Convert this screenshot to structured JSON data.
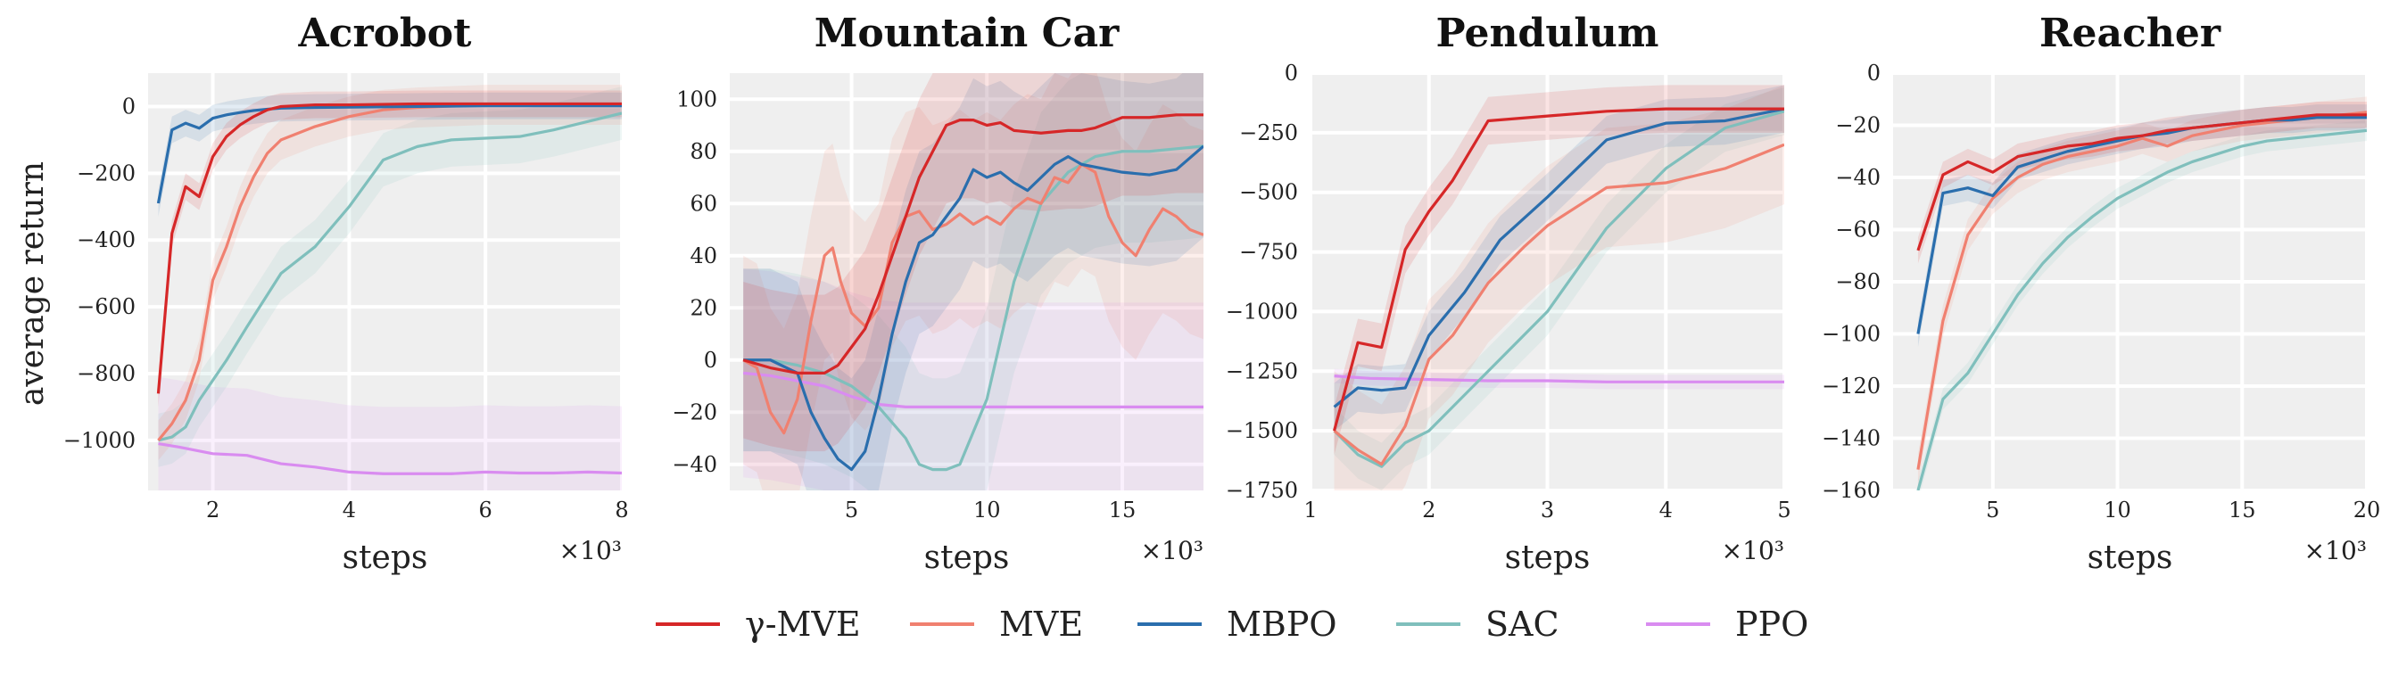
{
  "ylabel_shared": "average return",
  "legend": [
    {
      "label": "γ-MVE",
      "color": "#d62728"
    },
    {
      "label": "MVE",
      "color": "#f08070"
    },
    {
      "label": "MBPO",
      "color": "#2a6ead"
    },
    {
      "label": "SAC",
      "color": "#7fbfbc"
    },
    {
      "label": "PPO",
      "color": "#d98cf0"
    }
  ],
  "x_multiplier": "×10³",
  "chart_data": [
    {
      "type": "line",
      "title": "Acrobot",
      "xlabel": "steps",
      "ylabel": "average return",
      "xlim": [
        1.05,
        8
      ],
      "ylim": [
        -1150,
        100
      ],
      "xticks": [
        2,
        4,
        6,
        8
      ],
      "yticks": [
        0,
        -200,
        -400,
        -600,
        -800,
        -1000
      ],
      "grid": true,
      "series": [
        {
          "name": "γ-MVE",
          "x": [
            1.2,
            1.4,
            1.6,
            1.8,
            2.0,
            2.2,
            2.4,
            2.6,
            2.8,
            3.0,
            3.5,
            4.0,
            5.0,
            6.0,
            7.0,
            8.0
          ],
          "y": [
            -860,
            -380,
            -240,
            -270,
            -150,
            -90,
            -55,
            -30,
            -10,
            0,
            5,
            5,
            8,
            8,
            8,
            8
          ],
          "band": 40
        },
        {
          "name": "MVE",
          "x": [
            1.2,
            1.4,
            1.6,
            1.8,
            2.0,
            2.2,
            2.4,
            2.6,
            2.8,
            3.0,
            3.5,
            4.0,
            4.5,
            5.0,
            6.0,
            7.0,
            8.0
          ],
          "y": [
            -1000,
            -950,
            -880,
            -760,
            -520,
            -420,
            -300,
            -210,
            -140,
            -100,
            -60,
            -30,
            -10,
            -3,
            5,
            5,
            5
          ],
          "band": 60
        },
        {
          "name": "MBPO",
          "x": [
            1.2,
            1.4,
            1.6,
            1.8,
            2.0,
            2.2,
            2.4,
            2.6,
            2.8,
            3.0,
            3.5,
            4.0,
            5.0,
            6.0,
            7.0,
            8.0
          ],
          "y": [
            -290,
            -70,
            -50,
            -65,
            -35,
            -25,
            -18,
            -12,
            -8,
            -5,
            -3,
            -2,
            0,
            2,
            2,
            2
          ],
          "band": 40
        },
        {
          "name": "SAC",
          "x": [
            1.2,
            1.4,
            1.6,
            1.8,
            2.0,
            2.2,
            2.5,
            3.0,
            3.5,
            4.0,
            4.5,
            5.0,
            5.5,
            6.0,
            6.5,
            7.0,
            7.5,
            8.0
          ],
          "y": [
            -1000,
            -990,
            -960,
            -880,
            -820,
            -760,
            -660,
            -500,
            -420,
            -300,
            -160,
            -120,
            -100,
            -95,
            -90,
            -70,
            -45,
            -20
          ],
          "band": 80
        },
        {
          "name": "PPO",
          "x": [
            1.2,
            1.5,
            2.0,
            2.5,
            3.0,
            3.5,
            4.0,
            4.5,
            5.0,
            5.5,
            6.0,
            6.5,
            7.0,
            7.5,
            8.0
          ],
          "y": [
            -1010,
            -1020,
            -1040,
            -1045,
            -1070,
            -1080,
            -1095,
            -1100,
            -1100,
            -1100,
            -1095,
            -1098,
            -1098,
            -1095,
            -1098
          ],
          "band": 200
        }
      ]
    },
    {
      "type": "line",
      "title": "Mountain Car",
      "xlabel": "steps",
      "ylabel": "",
      "xlim": [
        0.5,
        18
      ],
      "ylim": [
        -50,
        110
      ],
      "xticks": [
        5,
        10,
        15
      ],
      "yticks": [
        100,
        80,
        60,
        40,
        20,
        0,
        -20,
        -40
      ],
      "grid": true,
      "series": [
        {
          "name": "γ-MVE",
          "x": [
            1,
            2,
            3,
            4,
            4.5,
            5,
            5.5,
            6,
            6.5,
            7,
            7.5,
            8,
            8.5,
            9,
            9.5,
            10,
            10.5,
            11,
            12,
            13,
            13.5,
            14,
            15,
            16,
            17,
            18
          ],
          "y": [
            0,
            -3,
            -5,
            -5,
            -2,
            5,
            12,
            25,
            40,
            55,
            70,
            80,
            90,
            92,
            92,
            90,
            91,
            88,
            87,
            88,
            88,
            89,
            93,
            93,
            94,
            94
          ],
          "band": 30
        },
        {
          "name": "MVE",
          "x": [
            1,
            1.5,
            2,
            2.5,
            3,
            3.5,
            4,
            4.3,
            4.6,
            5,
            5.5,
            6,
            6.5,
            7,
            7.5,
            8,
            8.5,
            9,
            9.5,
            10,
            10.5,
            11,
            11.5,
            12,
            12.5,
            13,
            13.5,
            14,
            14.5,
            15,
            15.5,
            16,
            16.5,
            17,
            17.5,
            18
          ],
          "y": [
            0,
            -3,
            -20,
            -28,
            -15,
            15,
            40,
            43,
            30,
            18,
            13,
            20,
            45,
            55,
            57,
            50,
            52,
            56,
            52,
            55,
            52,
            58,
            62,
            60,
            70,
            68,
            75,
            72,
            55,
            45,
            40,
            50,
            58,
            55,
            50,
            48
          ],
          "band": 40
        },
        {
          "name": "MBPO",
          "x": [
            1,
            2,
            3,
            3.5,
            4,
            4.5,
            5,
            5.5,
            6,
            6.5,
            7,
            7.5,
            8,
            8.5,
            9,
            9.5,
            10,
            10.5,
            11,
            11.5,
            12,
            12.5,
            13,
            13.5,
            14,
            15,
            16,
            17,
            18
          ],
          "y": [
            0,
            0,
            -5,
            -20,
            -30,
            -38,
            -42,
            -35,
            -15,
            10,
            30,
            45,
            48,
            55,
            62,
            73,
            70,
            72,
            68,
            65,
            70,
            75,
            78,
            75,
            74,
            72,
            71,
            73,
            82
          ],
          "band": 35
        },
        {
          "name": "SAC",
          "x": [
            1,
            2,
            3,
            4,
            5,
            6,
            7,
            7.5,
            8,
            8.5,
            9,
            10,
            11,
            12,
            13,
            14,
            15,
            16,
            17,
            18
          ],
          "y": [
            0,
            0,
            -2,
            -5,
            -10,
            -18,
            -30,
            -40,
            -42,
            -42,
            -40,
            -15,
            30,
            60,
            72,
            78,
            80,
            80,
            81,
            82
          ],
          "band": 35
        },
        {
          "name": "PPO",
          "x": [
            1,
            2,
            3,
            4,
            5,
            6,
            7,
            8,
            9,
            10,
            12,
            14,
            16,
            18
          ],
          "y": [
            -5,
            -6,
            -8,
            -10,
            -14,
            -17,
            -18,
            -18,
            -18,
            -18,
            -18,
            -18,
            -18,
            -18
          ],
          "band": 40
        }
      ]
    },
    {
      "type": "line",
      "title": "Pendulum",
      "xlabel": "steps",
      "ylabel": "",
      "xlim": [
        1,
        5
      ],
      "ylim": [
        -1750,
        0
      ],
      "xticks": [
        1,
        2,
        3,
        4,
        5
      ],
      "yticks": [
        0,
        -250,
        -500,
        -750,
        -1000,
        -1250,
        -1500,
        -1750
      ],
      "grid": true,
      "series": [
        {
          "name": "γ-MVE",
          "x": [
            1.2,
            1.4,
            1.6,
            1.8,
            2.0,
            2.2,
            2.5,
            3.0,
            3.5,
            4.0,
            4.5,
            5.0
          ],
          "y": [
            -1500,
            -1130,
            -1150,
            -740,
            -580,
            -450,
            -200,
            -180,
            -160,
            -150,
            -150,
            -150
          ],
          "band": 100
        },
        {
          "name": "MVE",
          "x": [
            1.2,
            1.4,
            1.6,
            1.8,
            2.0,
            2.2,
            2.5,
            2.8,
            3.0,
            3.5,
            4.0,
            4.5,
            5.0
          ],
          "y": [
            -1500,
            -1580,
            -1640,
            -1480,
            -1200,
            -1100,
            -880,
            -730,
            -640,
            -480,
            -460,
            -400,
            -300
          ],
          "band": 250
        },
        {
          "name": "MBPO",
          "x": [
            1.2,
            1.4,
            1.6,
            1.8,
            2.0,
            2.3,
            2.6,
            3.0,
            3.5,
            4.0,
            4.5,
            5.0
          ],
          "y": [
            -1400,
            -1320,
            -1330,
            -1320,
            -1100,
            -920,
            -700,
            -520,
            -280,
            -210,
            -200,
            -150
          ],
          "band": 100
        },
        {
          "name": "SAC",
          "x": [
            1.2,
            1.4,
            1.6,
            1.8,
            2.0,
            2.5,
            3.0,
            3.5,
            4.0,
            4.5,
            5.0
          ],
          "y": [
            -1500,
            -1600,
            -1650,
            -1550,
            -1500,
            -1250,
            -1000,
            -650,
            -400,
            -230,
            -160
          ],
          "band": 100
        },
        {
          "name": "PPO",
          "x": [
            1.2,
            1.5,
            2.0,
            2.5,
            3.0,
            3.5,
            4.0,
            4.5,
            5.0
          ],
          "y": [
            -1270,
            -1280,
            -1285,
            -1290,
            -1290,
            -1295,
            -1295,
            -1295,
            -1295
          ],
          "band": 30
        }
      ]
    },
    {
      "type": "line",
      "title": "Reacher",
      "xlabel": "steps",
      "ylabel": "",
      "xlim": [
        1,
        20
      ],
      "ylim": [
        -160,
        0
      ],
      "xticks": [
        5,
        10,
        15,
        20
      ],
      "yticks": [
        0,
        -20,
        -40,
        -60,
        -80,
        -100,
        -120,
        -140,
        -160
      ],
      "grid": true,
      "series": [
        {
          "name": "γ-MVE",
          "x": [
            2,
            3,
            4,
            5,
            6,
            7,
            8,
            9,
            10,
            11,
            12,
            13,
            14,
            15,
            16,
            17,
            18,
            19,
            20
          ],
          "y": [
            -68,
            -39,
            -34,
            -38,
            -32,
            -30,
            -28,
            -27,
            -25,
            -24,
            -22,
            -21,
            -20,
            -19,
            -18,
            -17,
            -16,
            -16,
            -16
          ],
          "band": 5
        },
        {
          "name": "MVE",
          "x": [
            2,
            3,
            4,
            5,
            6,
            7,
            8,
            9,
            10,
            11,
            12,
            13,
            14,
            15,
            16,
            17,
            18,
            19,
            20
          ],
          "y": [
            -152,
            -95,
            -62,
            -48,
            -40,
            -35,
            -32,
            -30,
            -28,
            -25,
            -28,
            -24,
            -22,
            -20,
            -19,
            -18,
            -17,
            -16,
            -15
          ],
          "band": 6
        },
        {
          "name": "MBPO",
          "x": [
            2,
            3,
            4,
            5,
            6,
            7,
            8,
            9,
            10,
            11,
            12,
            13,
            14,
            15,
            16,
            17,
            18,
            19,
            20
          ],
          "y": [
            -100,
            -46,
            -44,
            -47,
            -36,
            -33,
            -30,
            -28,
            -26,
            -24,
            -23,
            -21,
            -20,
            -19,
            -18,
            -18,
            -17,
            -17,
            -17
          ],
          "band": 5
        },
        {
          "name": "SAC",
          "x": [
            2,
            3,
            4,
            5,
            6,
            7,
            8,
            9,
            10,
            11,
            12,
            13,
            14,
            15,
            16,
            17,
            18,
            19,
            20
          ],
          "y": [
            -160,
            -125,
            -115,
            -100,
            -85,
            -73,
            -63,
            -55,
            -48,
            -43,
            -38,
            -34,
            -31,
            -28,
            -26,
            -25,
            -24,
            -23,
            -22
          ],
          "band": 4
        },
        {
          "name": "PPO",
          "x": [],
          "y": [],
          "band": 0
        }
      ]
    }
  ]
}
